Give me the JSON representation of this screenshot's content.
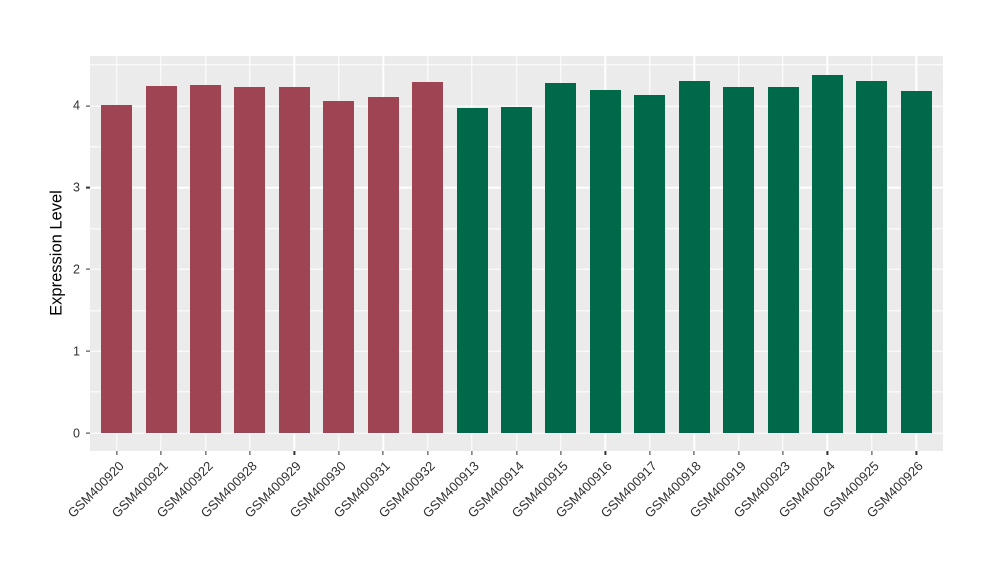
{
  "figure": {
    "background_color": "#FFFFFF",
    "panel_background_color": "#EBEBEB",
    "gridline_color": "#FFFFFF",
    "axis_tick_color": "#333333",
    "axis_text_color": "#303030"
  },
  "chart_data": {
    "type": "bar",
    "title": "",
    "xlabel": "",
    "ylabel": "Expression Level",
    "ylim": [
      -0.22,
      4.61
    ],
    "y_major_ticks": [
      0,
      1,
      2,
      3,
      4
    ],
    "y_minor_ticks": [
      0.5,
      1.5,
      2.5,
      3.5,
      4.5
    ],
    "grid": "on",
    "legend": "none",
    "bar_width_frac": 0.7,
    "x_label_angle_deg": 45,
    "group_colors": {
      "maroon": "#9E4452",
      "green": "#00694A"
    },
    "categories": [
      "GSM400920",
      "GSM400921",
      "GSM400922",
      "GSM400928",
      "GSM400929",
      "GSM400930",
      "GSM400931",
      "GSM400932",
      "GSM400913",
      "GSM400914",
      "GSM400915",
      "GSM400916",
      "GSM400917",
      "GSM400918",
      "GSM400919",
      "GSM400923",
      "GSM400924",
      "GSM400925",
      "GSM400926"
    ],
    "bars": [
      {
        "label": "GSM400920",
        "value": 4.01,
        "group": "maroon"
      },
      {
        "label": "GSM400921",
        "value": 4.24,
        "group": "maroon"
      },
      {
        "label": "GSM400922",
        "value": 4.25,
        "group": "maroon"
      },
      {
        "label": "GSM400928",
        "value": 4.23,
        "group": "maroon"
      },
      {
        "label": "GSM400929",
        "value": 4.23,
        "group": "maroon"
      },
      {
        "label": "GSM400930",
        "value": 4.06,
        "group": "maroon"
      },
      {
        "label": "GSM400931",
        "value": 4.11,
        "group": "maroon"
      },
      {
        "label": "GSM400932",
        "value": 4.29,
        "group": "maroon"
      },
      {
        "label": "GSM400913",
        "value": 3.98,
        "group": "green"
      },
      {
        "label": "GSM400914",
        "value": 3.99,
        "group": "green"
      },
      {
        "label": "GSM400915",
        "value": 4.28,
        "group": "green"
      },
      {
        "label": "GSM400916",
        "value": 4.2,
        "group": "green"
      },
      {
        "label": "GSM400917",
        "value": 4.13,
        "group": "green"
      },
      {
        "label": "GSM400918",
        "value": 4.3,
        "group": "green"
      },
      {
        "label": "GSM400919",
        "value": 4.23,
        "group": "green"
      },
      {
        "label": "GSM400923",
        "value": 4.23,
        "group": "green"
      },
      {
        "label": "GSM400924",
        "value": 4.38,
        "group": "green"
      },
      {
        "label": "GSM400925",
        "value": 4.3,
        "group": "green"
      },
      {
        "label": "GSM400926",
        "value": 4.18,
        "group": "green"
      }
    ]
  }
}
